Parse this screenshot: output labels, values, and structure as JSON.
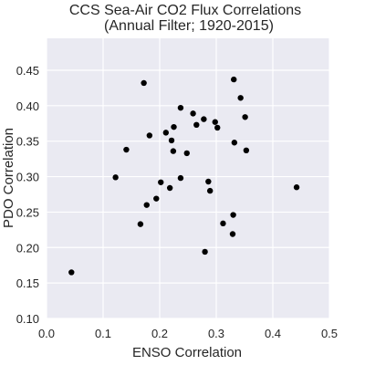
{
  "chart_data": {
    "type": "scatter",
    "title": "CCS Sea-Air CO2 Flux Correlations",
    "subtitle": "(Annual Filter; 1920-2015)",
    "xlabel": "ENSO Correlation",
    "ylabel": "PDO Correlation",
    "xlim": [
      0.0,
      0.5
    ],
    "ylim": [
      0.1,
      0.495
    ],
    "xticks": [
      "0.0",
      "0.1",
      "0.2",
      "0.3",
      "0.4",
      "0.5"
    ],
    "yticks": [
      "0.10",
      "0.15",
      "0.20",
      "0.25",
      "0.30",
      "0.35",
      "0.40",
      "0.45"
    ],
    "grid": true,
    "background": "#eaeaf2",
    "point_color": "#000000",
    "points": [
      {
        "x": 0.044,
        "y": 0.165
      },
      {
        "x": 0.122,
        "y": 0.299
      },
      {
        "x": 0.141,
        "y": 0.338
      },
      {
        "x": 0.166,
        "y": 0.233
      },
      {
        "x": 0.172,
        "y": 0.432
      },
      {
        "x": 0.177,
        "y": 0.26
      },
      {
        "x": 0.182,
        "y": 0.358
      },
      {
        "x": 0.194,
        "y": 0.269
      },
      {
        "x": 0.202,
        "y": 0.292
      },
      {
        "x": 0.211,
        "y": 0.362
      },
      {
        "x": 0.218,
        "y": 0.284
      },
      {
        "x": 0.221,
        "y": 0.351
      },
      {
        "x": 0.224,
        "y": 0.336
      },
      {
        "x": 0.225,
        "y": 0.37
      },
      {
        "x": 0.237,
        "y": 0.397
      },
      {
        "x": 0.237,
        "y": 0.298
      },
      {
        "x": 0.248,
        "y": 0.333
      },
      {
        "x": 0.259,
        "y": 0.389
      },
      {
        "x": 0.265,
        "y": 0.373
      },
      {
        "x": 0.278,
        "y": 0.381
      },
      {
        "x": 0.28,
        "y": 0.194
      },
      {
        "x": 0.286,
        "y": 0.293
      },
      {
        "x": 0.289,
        "y": 0.28
      },
      {
        "x": 0.298,
        "y": 0.377
      },
      {
        "x": 0.302,
        "y": 0.369
      },
      {
        "x": 0.312,
        "y": 0.234
      },
      {
        "x": 0.329,
        "y": 0.219
      },
      {
        "x": 0.33,
        "y": 0.246
      },
      {
        "x": 0.331,
        "y": 0.437
      },
      {
        "x": 0.332,
        "y": 0.348
      },
      {
        "x": 0.343,
        "y": 0.411
      },
      {
        "x": 0.351,
        "y": 0.384
      },
      {
        "x": 0.353,
        "y": 0.337
      },
      {
        "x": 0.442,
        "y": 0.285
      }
    ]
  }
}
